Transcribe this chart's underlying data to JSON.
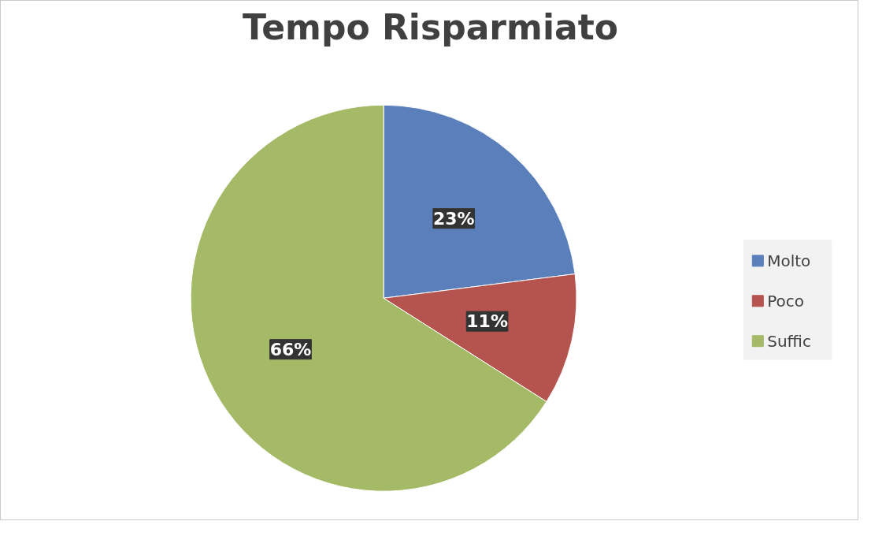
{
  "chart_data": {
    "type": "pie",
    "title": "Tempo Risparmiato",
    "categories": [
      "Molto",
      "Poco",
      "Suffic"
    ],
    "values": [
      23,
      11,
      66
    ],
    "colors": [
      "#5b7fba",
      "#b5534f",
      "#a4ba67"
    ],
    "value_labels": [
      "23%",
      "11%",
      "66%"
    ],
    "legend": "right"
  }
}
